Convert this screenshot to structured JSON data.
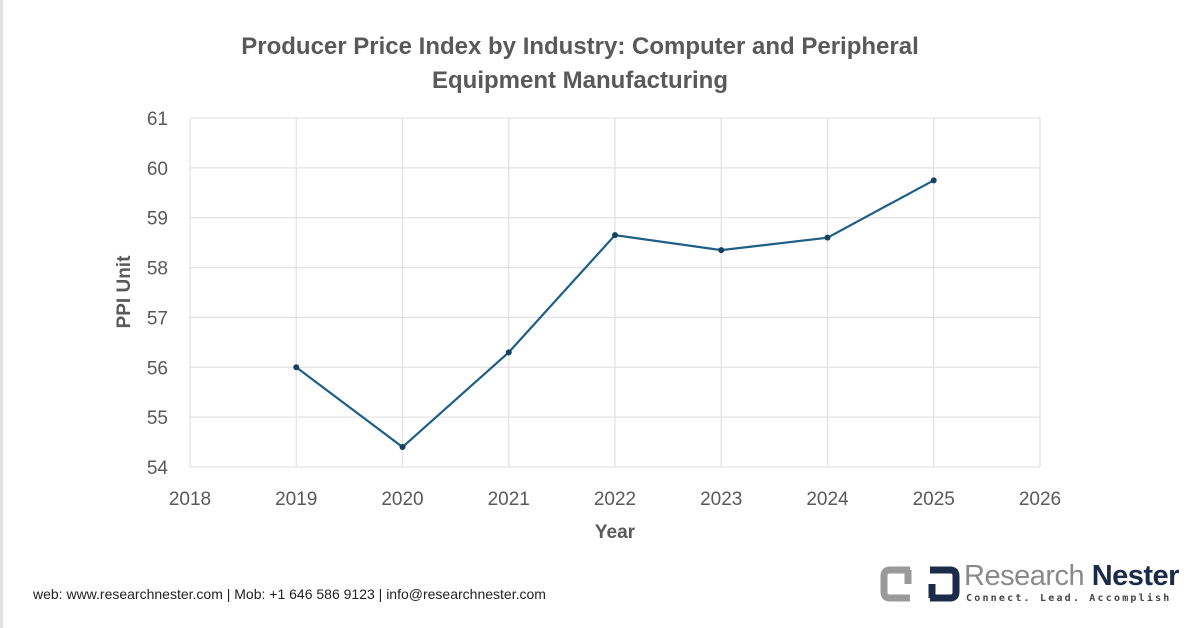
{
  "chart_data": {
    "type": "line",
    "title_line1": "Producer Price Index by Industry: Computer and Peripheral",
    "title_line2": "Equipment Manufacturing",
    "xlabel": "Year",
    "ylabel": "PPI Unit",
    "xlim": [
      2018,
      2026
    ],
    "ylim": [
      54,
      61
    ],
    "x_ticks": [
      "2018",
      "2019",
      "2020",
      "2021",
      "2022",
      "2023",
      "2024",
      "2025",
      "2026"
    ],
    "y_ticks": [
      "54",
      "55",
      "56",
      "57",
      "58",
      "59",
      "60",
      "61"
    ],
    "grid": true,
    "series": [
      {
        "name": "PPI",
        "color": "#1f5f85",
        "x": [
          2019,
          2020,
          2021,
          2022,
          2023,
          2024,
          2025
        ],
        "values": [
          56.0,
          54.4,
          56.3,
          58.65,
          58.35,
          58.6,
          59.75
        ]
      }
    ]
  },
  "footer": {
    "contact": "web: www.researchnester.com | Mob: +1 646 586 9123 | info@researchnester.com"
  },
  "logo": {
    "name_part1": "Research",
    "name_part2": "Nester",
    "tagline": "Connect. Lead. Accomplish"
  }
}
